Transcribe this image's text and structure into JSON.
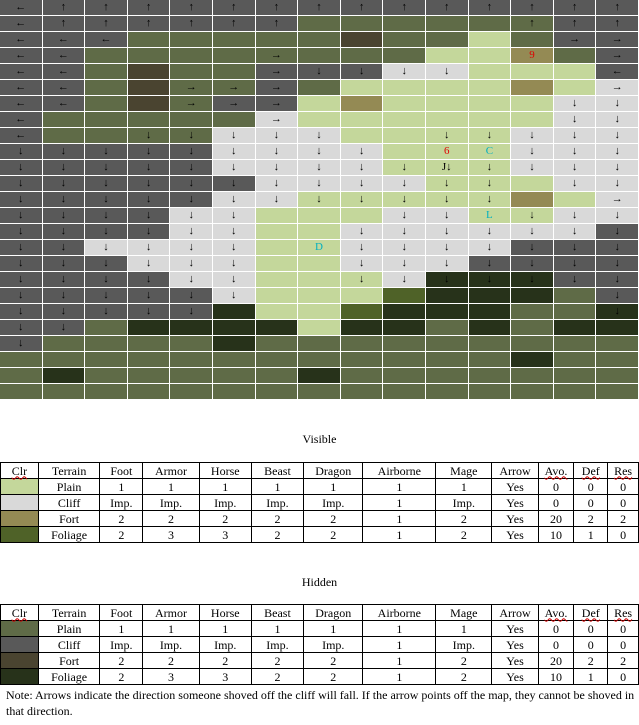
{
  "colors": {
    "plain_visible": "#c4d79b",
    "cliff_visible": "#d9d9d9",
    "fort_visible": "#948a54",
    "foliage_visible": "#4f6228",
    "plain_hidden": "#5f6b47",
    "cliff_hidden": "#595959",
    "fort_hidden": "#4a4430",
    "foliage_hidden": "#27321a"
  },
  "map": {
    "rows": [
      "ch,ch,ch,ch,ch,ch,ch,ch,ch,ch,ch,ch,ch,ch,ch",
      "ch,ch,ch,ch,ch,ch,ch,ph,ph,ph,ph,ph,ph,ch,ch",
      "ch,ch,ch,ph,ph,ph,ph,ph,Fh,ph,ph,pv,ph,ch,ch",
      "ch,ch,ph,ph,ph,ph,ph,ph,ph,ph,pv,pv,fv,ph,ch",
      "ch,ch,ph,Fh,ph,ph,ch,ch,ch,cv,cv,pv,pv,pv,ch",
      "ch,ch,ph,Fh,ph,ph,ch,ph,pv,pv,pv,pv,fv,pv,cv",
      "ch,ch,ph,Fh,ph,ch,ch,pv,fv,pv,pv,pv,pv,cv,cv",
      "ch,ph,ph,ph,ph,ph,cv,pv,pv,pv,pv,pv,pv,cv,cv",
      "ch,ph,ph,ph,ph,cv,cv,cv,pv,pv,pv,pv,cv,cv,cv",
      "ch,ch,ch,ch,ch,cv,cv,cv,cv,pv,pv,pv,cv,cv,cv",
      "ch,ch,ch,ch,ch,cv,cv,cv,cv,pv,pv,pv,cv,cv,cv",
      "ch,ch,ch,ch,ch,ch,cv,cv,cv,cv,pv,pv,pv,cv,cv",
      "ch,ch,ch,ch,ch,cv,cv,pv,pv,pv,pv,pv,fv,pv,cv",
      "ch,ch,ch,ch,cv,cv,pv,pv,pv,cv,cv,pv,pv,cv,cv",
      "ch,ch,ch,ch,cv,cv,pv,pv,cv,cv,cv,cv,cv,cv,ch",
      "ch,ch,cv,cv,cv,cv,pv,pv,cv,cv,cv,cv,ch,ch,ch",
      "ch,ch,ch,cv,cv,cv,pv,pv,cv,cv,cv,ch,ch,ch,ch",
      "ch,ch,ch,ch,cv,cv,pv,pv,pv,cv,Lh,Lh,Lh,ch,ch",
      "ch,ch,ch,ch,ch,cv,pv,pv,pv,Lv,Lh,Lh,Lh,ph,ch",
      "ch,ch,ch,ch,ch,Lh,pv,pv,Lv,Lh,Lh,Lh,ph,ph,Lh",
      "ch,ch,ph,Lh,Lh,Lh,Lh,pv,Lh,Lh,ph,Lh,ph,Lh,Lh",
      "ch,ph,ph,ph,ph,Lh,ph,ph,ph,ph,ph,ph,ph,ph,ph",
      "ph,ph,ph,ph,ph,ph,ph,ph,ph,ph,ph,ph,Lh,ph,ph",
      "ph,Lh,ph,ph,ph,ph,ph,Lh,ph,ph,ph,ph,ph,ph,ph",
      "ph,ph,ph,ph,ph,ph,ph,ph,ph,ph,ph,ph,ph,ph,ph"
    ],
    "arrows": [
      "←,↑,↑,↑,↑,↑,↑,↑,↑,↑,↑,↑,↑,↑,↑",
      "←,↑,↑,↑,↑,↑,↑,,,,,,↑,↑,↑",
      "←,←,←,,,,,,,,,,,→,→",
      "←,←,,,,,→,,,,,,,,→",
      "←,←,,,,,→,↓,↓,↓,↓,,,,←",
      "←,←,,,→,→,→,,,,,,,,→",
      "←,←,,,→,→,→,,,,,,,↓,↓",
      "←,,,,,,→,,,,,,,↓,↓",
      "←,,,↓,↓,↓,↓,↓,,,↓,↓,↓,↓,↓",
      "↓,↓,↓,↓,↓,↓,↓,↓,↓,,,,↓,↓,↓",
      "↓,↓,↓,↓,↓,↓,↓,↓,↓,↓,J↓,↓,↓,↓,↓",
      "↓,↓,↓,↓,↓,↓,↓,↓,↓,↓,↓,↓,,↓,↓",
      "↓,↓,↓,↓,↓,↓,↓,↓,↓,↓,↓,↓,,,→",
      "↓,↓,↓,↓,↓,↓,,,,↓,↓,,↓,↓,↓",
      "↓,↓,↓,↓,↓,↓,,,↓,↓,↓,↓,↓,↓,↓",
      "↓,↓,↓,↓,↓,↓,,,↓,↓,↓,↓,↓,↓,↓",
      "↓,↓,↓,↓,↓,↓,,,↓,↓,↓,↓,↓,↓,↓",
      "↓,↓,↓,↓,↓,↓,,,↓,↓,↓,↓,↓,↓,↓",
      "↓,↓,↓,↓,↓,↓,,,,,,,,,↓",
      "↓,↓,↓,↓,↓,,,,,,,,,,↓",
      "↓,↓,,,,,,,,,,,,,",
      "↓,,,,,,,,,,,,,,",
      ",,,,,,,,,,,,,,",
      ",,,,,,,,,,,,,,",
      ",,,,,,,,,,,,,,"
    ],
    "markers": [
      {
        "row": 3,
        "col": 12,
        "text": "9",
        "color": "#e00000"
      },
      {
        "row": 9,
        "col": 10,
        "text": "6",
        "color": "#e00000"
      },
      {
        "row": 9,
        "col": 11,
        "text": "C",
        "color": "#00b0c0"
      },
      {
        "row": 13,
        "col": 11,
        "text": "L",
        "color": "#00b0c0"
      },
      {
        "row": 15,
        "col": 7,
        "text": "D",
        "color": "#00b0c0"
      }
    ]
  },
  "visible": {
    "title": "Visible",
    "headers": [
      "Clr",
      "Terrain",
      "Foot",
      "Armor",
      "Horse",
      "Beast",
      "Dragon",
      "Airborne",
      "Mage",
      "Arrow",
      "Avo.",
      "Def",
      "Res"
    ],
    "rows": [
      {
        "color": "#c4d79b",
        "cells": [
          "Plain",
          "1",
          "1",
          "1",
          "1",
          "1",
          "1",
          "1",
          "Yes",
          "0",
          "0",
          "0"
        ]
      },
      {
        "color": "#d9d9d9",
        "cells": [
          "Cliff",
          "Imp.",
          "Imp.",
          "Imp.",
          "Imp.",
          "Imp.",
          "1",
          "Imp.",
          "Yes",
          "0",
          "0",
          "0"
        ]
      },
      {
        "color": "#948a54",
        "cells": [
          "Fort",
          "2",
          "2",
          "2",
          "2",
          "2",
          "1",
          "2",
          "Yes",
          "20",
          "2",
          "2"
        ]
      },
      {
        "color": "#4f6228",
        "cells": [
          "Foliage",
          "2",
          "3",
          "3",
          "2",
          "2",
          "1",
          "2",
          "Yes",
          "10",
          "1",
          "0"
        ]
      }
    ]
  },
  "hidden": {
    "title": "Hidden",
    "headers": [
      "Clr",
      "Terrain",
      "Foot",
      "Armor",
      "Horse",
      "Beast",
      "Dragon",
      "Airborne",
      "Mage",
      "Arrow",
      "Avo.",
      "Def",
      "Res"
    ],
    "rows": [
      {
        "color": "#5f6b47",
        "cells": [
          "Plain",
          "1",
          "1",
          "1",
          "1",
          "1",
          "1",
          "1",
          "Yes",
          "0",
          "0",
          "0"
        ]
      },
      {
        "color": "#595959",
        "cells": [
          "Cliff",
          "Imp.",
          "Imp.",
          "Imp.",
          "Imp.",
          "Imp.",
          "1",
          "Imp.",
          "Yes",
          "0",
          "0",
          "0"
        ]
      },
      {
        "color": "#4a4430",
        "cells": [
          "Fort",
          "2",
          "2",
          "2",
          "2",
          "2",
          "1",
          "2",
          "Yes",
          "20",
          "2",
          "2"
        ]
      },
      {
        "color": "#27321a",
        "cells": [
          "Foliage",
          "2",
          "3",
          "3",
          "2",
          "2",
          "1",
          "2",
          "Yes",
          "10",
          "1",
          "0"
        ]
      }
    ]
  },
  "note": "Note: Arrows indicate the direction someone shoved off the cliff will fall.  If the arrow points off the map, they cannot be shoved in that direction."
}
